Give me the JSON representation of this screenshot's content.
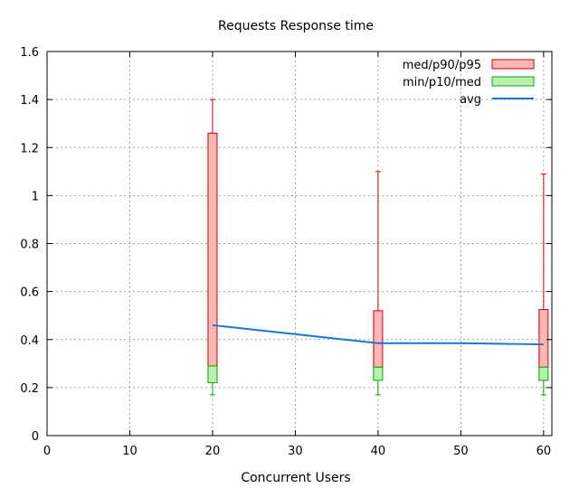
{
  "chart_data": {
    "type": "box",
    "title": "Requests Response time",
    "xlabel": "Concurrent Users",
    "ylabel": "",
    "xlim": [
      0,
      61
    ],
    "ylim": [
      0,
      1.6
    ],
    "x_ticks": [
      "0",
      "10",
      "20",
      "30",
      "40",
      "50",
      "60"
    ],
    "y_ticks": [
      "0",
      "0.2",
      "0.4",
      "0.6",
      "0.8",
      "1",
      "1.2",
      "1.4",
      "1.6"
    ],
    "grid": true,
    "legend_position": "top-right",
    "series": [
      {
        "name": "med/p90/p95",
        "kind": "upper-box",
        "color": "#cc0000",
        "fill": "#ffb6b6",
        "points": [
          {
            "x": 20,
            "med": 0.29,
            "p90": 1.26,
            "p95": 1.4
          },
          {
            "x": 40,
            "med": 0.285,
            "p90": 0.52,
            "p95": 1.1
          },
          {
            "x": 60,
            "med": 0.285,
            "p90": 0.525,
            "p95": 1.09
          }
        ]
      },
      {
        "name": "min/p10/med",
        "kind": "lower-box",
        "color": "#00aa00",
        "fill": "#b8f0b0",
        "points": [
          {
            "x": 20,
            "min": 0.17,
            "p10": 0.22,
            "med": 0.29
          },
          {
            "x": 40,
            "min": 0.17,
            "p10": 0.23,
            "med": 0.285
          },
          {
            "x": 60,
            "min": 0.17,
            "p10": 0.23,
            "med": 0.285
          }
        ]
      },
      {
        "name": "avg",
        "kind": "line",
        "color": "#1a75d1",
        "points": [
          {
            "x": 20,
            "y": 0.46
          },
          {
            "x": 40,
            "y": 0.385
          },
          {
            "x": 50,
            "y": 0.385
          },
          {
            "x": 60,
            "y": 0.38
          }
        ]
      }
    ]
  }
}
